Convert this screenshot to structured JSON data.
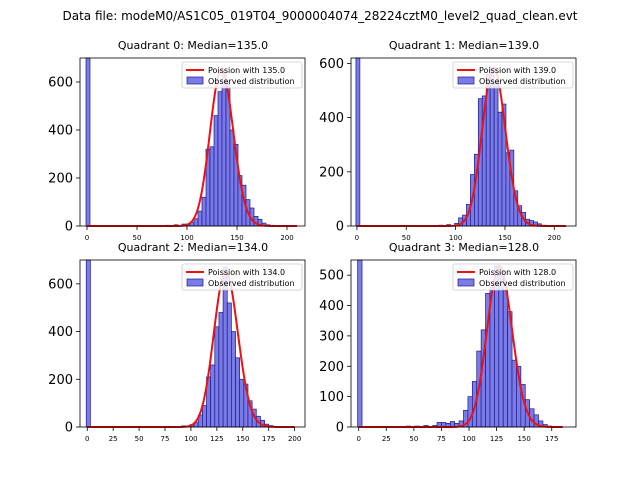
{
  "figure": {
    "suptitle": "Data file: modeM0/AS1C05_019T04_9000004074_28224cztM0_level2_quad_clean.evt"
  },
  "colors": {
    "bar_fill": "#7b7be8",
    "bar_edge": "#1a1a8c",
    "curve": "#ee1111",
    "axes": "#000000"
  },
  "chart_data": [
    {
      "type": "bar",
      "title": "Quadrant 0: Median=135.0",
      "legend": [
        "Poission with 135.0",
        "Observed distribution"
      ],
      "legend_loc": "upper right",
      "xlim": [
        -7,
        218
      ],
      "ylim": [
        0,
        700
      ],
      "xticks": [
        0,
        50,
        100,
        150,
        200
      ],
      "xtick_labels": [
        "0",
        "50",
        "100",
        "150",
        "200"
      ],
      "yticks": [
        0,
        200,
        400,
        600
      ],
      "ytick_labels": [
        "0",
        "200",
        "400",
        "600"
      ],
      "bin_width": 4,
      "bins": [
        {
          "x0": -1,
          "count": 700
        },
        {
          "x0": 79,
          "count": 3
        },
        {
          "x0": 87,
          "count": 5
        },
        {
          "x0": 95,
          "count": 8
        },
        {
          "x0": 99,
          "count": 8
        },
        {
          "x0": 103,
          "count": 14
        },
        {
          "x0": 107,
          "count": 30
        },
        {
          "x0": 111,
          "count": 62
        },
        {
          "x0": 115,
          "count": 120
        },
        {
          "x0": 119,
          "count": 320
        },
        {
          "x0": 123,
          "count": 330
        },
        {
          "x0": 127,
          "count": 460
        },
        {
          "x0": 131,
          "count": 560
        },
        {
          "x0": 135,
          "count": 650
        },
        {
          "x0": 139,
          "count": 600
        },
        {
          "x0": 143,
          "count": 400
        },
        {
          "x0": 147,
          "count": 340
        },
        {
          "x0": 151,
          "count": 210
        },
        {
          "x0": 155,
          "count": 170
        },
        {
          "x0": 159,
          "count": 110
        },
        {
          "x0": 163,
          "count": 75
        },
        {
          "x0": 167,
          "count": 40
        },
        {
          "x0": 171,
          "count": 28
        },
        {
          "x0": 175,
          "count": 12
        },
        {
          "x0": 179,
          "count": 5
        },
        {
          "x0": 183,
          "count": 3
        }
      ],
      "poisson": {
        "mean": 135.0,
        "scale": 650,
        "x_range": [
          0,
          210
        ]
      }
    },
    {
      "type": "bar",
      "title": "Quadrant 1: Median=139.0",
      "legend": [
        "Poission with 139.0",
        "Observed distribution"
      ],
      "legend_loc": "upper right",
      "xlim": [
        -6,
        222
      ],
      "ylim": [
        0,
        620
      ],
      "xticks": [
        0,
        50,
        100,
        150,
        200
      ],
      "xtick_labels": [
        "0",
        "50",
        "100",
        "150",
        "200"
      ],
      "yticks": [
        0,
        200,
        400,
        600
      ],
      "ytick_labels": [
        "0",
        "200",
        "400",
        "600"
      ],
      "bin_width": 4,
      "bins": [
        {
          "x0": -1,
          "count": 620
        },
        {
          "x0": 83,
          "count": 3
        },
        {
          "x0": 91,
          "count": 5
        },
        {
          "x0": 99,
          "count": 10
        },
        {
          "x0": 103,
          "count": 30
        },
        {
          "x0": 107,
          "count": 40
        },
        {
          "x0": 111,
          "count": 80
        },
        {
          "x0": 115,
          "count": 190
        },
        {
          "x0": 119,
          "count": 265
        },
        {
          "x0": 123,
          "count": 470
        },
        {
          "x0": 127,
          "count": 480
        },
        {
          "x0": 131,
          "count": 560
        },
        {
          "x0": 135,
          "count": 585
        },
        {
          "x0": 139,
          "count": 530
        },
        {
          "x0": 143,
          "count": 420
        },
        {
          "x0": 147,
          "count": 450
        },
        {
          "x0": 151,
          "count": 270
        },
        {
          "x0": 155,
          "count": 280
        },
        {
          "x0": 159,
          "count": 130
        },
        {
          "x0": 163,
          "count": 75
        },
        {
          "x0": 167,
          "count": 50
        },
        {
          "x0": 171,
          "count": 25
        },
        {
          "x0": 175,
          "count": 20
        },
        {
          "x0": 179,
          "count": 15
        },
        {
          "x0": 183,
          "count": 8
        },
        {
          "x0": 187,
          "count": 3
        }
      ],
      "poisson": {
        "mean": 139.0,
        "scale": 585,
        "x_range": [
          0,
          212
        ]
      }
    },
    {
      "type": "bar",
      "title": "Quadrant 2: Median=134.0",
      "legend": [
        "Poission with 134.0",
        "Observed distribution"
      ],
      "legend_loc": "upper right",
      "xlim": [
        -7,
        210
      ],
      "ylim": [
        0,
        700
      ],
      "xticks": [
        0,
        25,
        50,
        75,
        100,
        125,
        150,
        175,
        200
      ],
      "xtick_labels": [
        "0",
        "25",
        "50",
        "75",
        "100",
        "125",
        "150",
        "175",
        "200"
      ],
      "yticks": [
        0,
        200,
        400,
        600
      ],
      "ytick_labels": [
        "0",
        "200",
        "400",
        "600"
      ],
      "bin_width": 4,
      "bins": [
        {
          "x0": -1,
          "count": 700
        },
        {
          "x0": 75,
          "count": 3
        },
        {
          "x0": 91,
          "count": 5
        },
        {
          "x0": 99,
          "count": 10
        },
        {
          "x0": 103,
          "count": 18
        },
        {
          "x0": 107,
          "count": 50
        },
        {
          "x0": 111,
          "count": 90
        },
        {
          "x0": 115,
          "count": 210
        },
        {
          "x0": 119,
          "count": 260
        },
        {
          "x0": 123,
          "count": 420
        },
        {
          "x0": 127,
          "count": 480
        },
        {
          "x0": 131,
          "count": 670
        },
        {
          "x0": 135,
          "count": 520
        },
        {
          "x0": 139,
          "count": 400
        },
        {
          "x0": 143,
          "count": 290
        },
        {
          "x0": 147,
          "count": 200
        },
        {
          "x0": 151,
          "count": 180
        },
        {
          "x0": 155,
          "count": 110
        },
        {
          "x0": 159,
          "count": 75
        },
        {
          "x0": 163,
          "count": 45
        },
        {
          "x0": 167,
          "count": 28
        },
        {
          "x0": 171,
          "count": 12
        },
        {
          "x0": 175,
          "count": 6
        },
        {
          "x0": 179,
          "count": 3
        }
      ],
      "poisson": {
        "mean": 134.0,
        "scale": 650,
        "x_range": [
          0,
          200
        ]
      }
    },
    {
      "type": "bar",
      "title": "Quadrant 3: Median=128.0",
      "legend": [
        "Poission with 128.0",
        "Observed distribution"
      ],
      "legend_loc": "upper right",
      "xlim": [
        -7,
        197
      ],
      "ylim": [
        0,
        550
      ],
      "xticks": [
        0,
        25,
        50,
        75,
        100,
        125,
        150,
        175
      ],
      "xtick_labels": [
        "0",
        "25",
        "50",
        "75",
        "100",
        "125",
        "150",
        "175"
      ],
      "yticks": [
        0,
        100,
        200,
        300,
        400,
        500
      ],
      "ytick_labels": [
        "0",
        "100",
        "200",
        "300",
        "400",
        "500"
      ],
      "bin_width": 4,
      "bins": [
        {
          "x0": -1,
          "count": 550
        },
        {
          "x0": 43,
          "count": 3
        },
        {
          "x0": 51,
          "count": 3
        },
        {
          "x0": 59,
          "count": 5
        },
        {
          "x0": 67,
          "count": 5
        },
        {
          "x0": 71,
          "count": 15
        },
        {
          "x0": 75,
          "count": 15
        },
        {
          "x0": 79,
          "count": 12
        },
        {
          "x0": 83,
          "count": 18
        },
        {
          "x0": 87,
          "count": 12
        },
        {
          "x0": 91,
          "count": 20
        },
        {
          "x0": 95,
          "count": 55
        },
        {
          "x0": 99,
          "count": 100
        },
        {
          "x0": 103,
          "count": 150
        },
        {
          "x0": 107,
          "count": 250
        },
        {
          "x0": 111,
          "count": 320
        },
        {
          "x0": 115,
          "count": 440
        },
        {
          "x0": 119,
          "count": 460
        },
        {
          "x0": 123,
          "count": 530
        },
        {
          "x0": 127,
          "count": 510
        },
        {
          "x0": 131,
          "count": 450
        },
        {
          "x0": 135,
          "count": 380
        },
        {
          "x0": 139,
          "count": 220
        },
        {
          "x0": 143,
          "count": 200
        },
        {
          "x0": 147,
          "count": 140
        },
        {
          "x0": 151,
          "count": 90
        },
        {
          "x0": 155,
          "count": 60
        },
        {
          "x0": 159,
          "count": 40
        },
        {
          "x0": 163,
          "count": 20
        },
        {
          "x0": 167,
          "count": 8
        },
        {
          "x0": 171,
          "count": 3
        }
      ],
      "poisson": {
        "mean": 128.0,
        "scale": 530,
        "x_range": [
          0,
          185
        ]
      }
    }
  ]
}
